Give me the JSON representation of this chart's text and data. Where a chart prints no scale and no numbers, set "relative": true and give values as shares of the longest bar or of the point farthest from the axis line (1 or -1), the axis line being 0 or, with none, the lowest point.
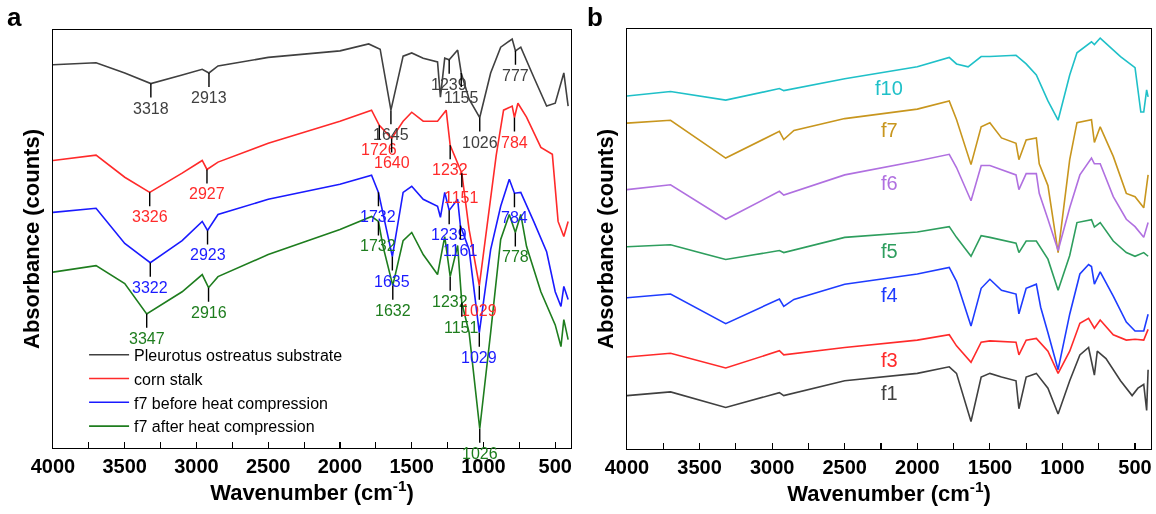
{
  "chart_data": [
    {
      "type": "line",
      "title": "a",
      "xlabel": "Wavenumber (cm$^{-1}$)",
      "ylabel": "Absorbance (counts)",
      "relative": true,
      "xlim": [
        4000,
        390
      ],
      "xticks": [
        4000,
        {
          "value": 3750,
          "label": null
        },
        3500,
        {
          "value": 3250,
          "label": null
        },
        3000,
        {
          "value": 2750,
          "label": null
        },
        2500,
        {
          "value": 2250,
          "label": null
        },
        2000,
        {
          "value": 1750,
          "label": null
        },
        1500,
        {
          "value": 1250,
          "label": null
        },
        1000,
        {
          "value": 750,
          "label": null
        },
        500
      ],
      "grid": false,
      "legend": "bottom left",
      "tick_labels": "x",
      "series": [
        {
          "name": "Pleurotus ostreatus substrate",
          "color": "#404040",
          "x": [
            4000,
            3700,
            3500,
            3318,
            3100,
            2960,
            2913,
            2850,
            2500,
            2000,
            1800,
            1720,
            1645,
            1560,
            1500,
            1420,
            1320,
            1300,
            1270,
            1239,
            1180,
            1155,
            1100,
            1026,
            950,
            880,
            800,
            777,
            740,
            650,
            560,
            500,
            440,
            410
          ],
          "values": [
            0.937,
            0.942,
            0.917,
            0.891,
            0.912,
            0.926,
            0.917,
            0.934,
            0.955,
            0.971,
            0.988,
            0.975,
            0.826,
            0.958,
            0.966,
            0.953,
            0.944,
            0.858,
            0.953,
            0.949,
            0.973,
            0.917,
            0.853,
            0.808,
            0.917,
            0.98,
            1.0,
            0.971,
            0.98,
            0.907,
            0.836,
            0.843,
            0.917,
            0.836
          ]
        },
        {
          "name": "corn stalk",
          "color": "#ff2a2a",
          "x": [
            4000,
            3700,
            3500,
            3326,
            3100,
            2960,
            2927,
            2850,
            2500,
            2000,
            1780,
            1726,
            1640,
            1560,
            1500,
            1420,
            1320,
            1260,
            1232,
            1151,
            1100,
            1029,
            911,
            860,
            800,
            784,
            760,
            700,
            600,
            520,
            480,
            440,
            410
          ],
          "values": [
            0.703,
            0.716,
            0.662,
            0.625,
            0.672,
            0.703,
            0.681,
            0.699,
            0.745,
            0.799,
            0.826,
            0.789,
            0.757,
            0.799,
            0.821,
            0.799,
            0.799,
            0.826,
            0.74,
            0.672,
            0.534,
            0.397,
            0.716,
            0.826,
            0.836,
            0.808,
            0.843,
            0.809,
            0.735,
            0.718,
            0.554,
            0.517,
            0.554
          ]
        },
        {
          "name": "f7 before heat compression",
          "color": "#1a1aff",
          "x": [
            4000,
            3700,
            3500,
            3322,
            3100,
            2960,
            2923,
            2850,
            2500,
            2000,
            1780,
            1732,
            1635,
            1560,
            1500,
            1420,
            1320,
            1300,
            1270,
            1239,
            1180,
            1161,
            1100,
            1029,
            950,
            880,
            820,
            784,
            740,
            650,
            560,
            500,
            460,
            440,
            410
          ],
          "values": [
            0.576,
            0.586,
            0.5,
            0.453,
            0.507,
            0.554,
            0.532,
            0.571,
            0.608,
            0.645,
            0.667,
            0.625,
            0.468,
            0.625,
            0.64,
            0.608,
            0.591,
            0.564,
            0.625,
            0.581,
            0.608,
            0.544,
            0.485,
            0.282,
            0.485,
            0.591,
            0.657,
            0.623,
            0.625,
            0.554,
            0.48,
            0.382,
            0.346,
            0.395,
            0.363
          ]
        },
        {
          "name": "f7 after heat compression",
          "color": "#1e7d1e",
          "x": [
            4000,
            3700,
            3500,
            3347,
            3100,
            2960,
            2916,
            2850,
            2500,
            2000,
            1780,
            1732,
            1700,
            1632,
            1560,
            1500,
            1420,
            1320,
            1270,
            1232,
            1180,
            1151,
            1100,
            1026,
            950,
            880,
            820,
            778,
            740,
            700,
            600,
            500,
            460,
            440,
            410
          ],
          "values": [
            0.43,
            0.446,
            0.402,
            0.328,
            0.382,
            0.424,
            0.392,
            0.419,
            0.473,
            0.534,
            0.566,
            0.554,
            0.493,
            0.397,
            0.507,
            0.527,
            0.473,
            0.424,
            0.517,
            0.419,
            0.495,
            0.355,
            0.282,
            0.047,
            0.282,
            0.51,
            0.571,
            0.527,
            0.571,
            0.493,
            0.382,
            0.301,
            0.248,
            0.314,
            0.265
          ]
        }
      ],
      "annotations": [
        {
          "text": "3318",
          "x": 3318,
          "y": 0.891
        },
        {
          "text": "2913",
          "x": 2913,
          "y": 0.917
        },
        {
          "text": "1645",
          "x": 1645,
          "y": 0.826
        },
        {
          "text": "1239",
          "x": 1239,
          "y": 0.949
        },
        {
          "text": "1155",
          "x": 1155,
          "y": 0.917
        },
        {
          "text": "1026",
          "x": 1026,
          "y": 0.808
        },
        {
          "text": "777",
          "x": 777,
          "y": 0.971
        },
        {
          "text": "3326",
          "x": 3326,
          "y": 0.625
        },
        {
          "text": "2927",
          "x": 2927,
          "y": 0.681
        },
        {
          "text": "1726",
          "x": 1726,
          "y": 0.789
        },
        {
          "text": "1640",
          "x": 1640,
          "y": 0.757
        },
        {
          "text": "1232",
          "x": 1232,
          "y": 0.74
        },
        {
          "text": "1151",
          "x": 1151,
          "y": 0.672
        },
        {
          "text": "1029",
          "x": 1029,
          "y": 0.397
        },
        {
          "text": "784",
          "x": 784,
          "y": 0.808
        },
        {
          "text": "3322",
          "x": 3322,
          "y": 0.453
        },
        {
          "text": "2923",
          "x": 2923,
          "y": 0.532
        },
        {
          "text": "1732",
          "x": 1732,
          "y": 0.625
        },
        {
          "text": "1635",
          "x": 1635,
          "y": 0.468
        },
        {
          "text": "1239",
          "x": 1239,
          "y": 0.581
        },
        {
          "text": "1161",
          "x": 1161,
          "y": 0.544
        },
        {
          "text": "1029",
          "x": 1029,
          "y": 0.282
        },
        {
          "text": "784",
          "x": 784,
          "y": 0.623
        },
        {
          "text": "3347",
          "x": 3347,
          "y": 0.328
        },
        {
          "text": "2916",
          "x": 2916,
          "y": 0.392
        },
        {
          "text": "1732",
          "x": 1732,
          "y": 0.554
        },
        {
          "text": "1632",
          "x": 1632,
          "y": 0.397
        },
        {
          "text": "1232",
          "x": 1232,
          "y": 0.419
        },
        {
          "text": "1151",
          "x": 1151,
          "y": 0.355
        },
        {
          "text": "1026",
          "x": 1026,
          "y": 0.047
        },
        {
          "text": "778",
          "x": 778,
          "y": 0.527
        }
      ]
    },
    {
      "type": "line",
      "title": "b",
      "xlabel": "Wavenumber (cm$^{-1}$)",
      "ylabel": "Absorbance (counts)",
      "relative": true,
      "xlim": [
        4000,
        390
      ],
      "xticks": [
        4000,
        {
          "value": 3750,
          "label": null
        },
        3500,
        {
          "value": 3250,
          "label": null
        },
        3000,
        {
          "value": 2750,
          "label": null
        },
        2500,
        {
          "value": 2250,
          "label": null
        },
        2000,
        {
          "value": 1750,
          "label": null
        },
        1500,
        {
          "value": 1250,
          "label": null
        },
        1000,
        {
          "value": 750,
          "label": null
        },
        500
      ],
      "grid": false,
      "tick_labels": "x",
      "series": [
        {
          "name": "f10",
          "color": "#1fc0c8",
          "x": [
            4000,
            3700,
            3320,
            2950,
            2920,
            2500,
            2000,
            1780,
            1730,
            1650,
            1560,
            1500,
            1320,
            1250,
            1180,
            1100,
            1030,
            950,
            900,
            800,
            780,
            740,
            600,
            500,
            460,
            440,
            420,
            410
          ],
          "values": [
            0.859,
            0.87,
            0.849,
            0.877,
            0.872,
            0.901,
            0.93,
            0.953,
            0.937,
            0.93,
            0.955,
            0.955,
            0.958,
            0.937,
            0.91,
            0.847,
            0.8,
            0.91,
            0.964,
            0.991,
            0.984,
            1.0,
            0.955,
            0.928,
            0.82,
            0.82,
            0.874,
            0.857
          ]
        },
        {
          "name": "f7",
          "color": "#c8961e",
          "x": [
            4000,
            3700,
            3320,
            2950,
            2920,
            2850,
            2500,
            2000,
            1780,
            1730,
            1630,
            1560,
            1500,
            1420,
            1320,
            1300,
            1250,
            1180,
            1160,
            1100,
            1030,
            950,
            900,
            800,
            780,
            740,
            650,
            560,
            500,
            440,
            410
          ],
          "values": [
            0.793,
            0.8,
            0.708,
            0.773,
            0.753,
            0.775,
            0.804,
            0.827,
            0.847,
            0.802,
            0.692,
            0.784,
            0.794,
            0.757,
            0.744,
            0.704,
            0.752,
            0.757,
            0.694,
            0.641,
            0.478,
            0.704,
            0.794,
            0.801,
            0.746,
            0.784,
            0.712,
            0.622,
            0.614,
            0.587,
            0.667
          ]
        },
        {
          "name": "f6",
          "color": "#b070e0",
          "x": [
            4000,
            3700,
            3320,
            2950,
            2920,
            2500,
            2000,
            1780,
            1730,
            1630,
            1560,
            1500,
            1320,
            1300,
            1250,
            1180,
            1160,
            1100,
            1030,
            950,
            880,
            800,
            780,
            740,
            650,
            560,
            500,
            440,
            410
          ],
          "values": [
            0.631,
            0.643,
            0.559,
            0.627,
            0.618,
            0.667,
            0.701,
            0.717,
            0.685,
            0.604,
            0.69,
            0.69,
            0.667,
            0.631,
            0.67,
            0.67,
            0.622,
            0.559,
            0.483,
            0.587,
            0.667,
            0.708,
            0.694,
            0.694,
            0.614,
            0.559,
            0.541,
            0.515,
            0.551
          ]
        },
        {
          "name": "f5",
          "color": "#2e9e5e",
          "x": [
            4000,
            3700,
            3320,
            2950,
            2920,
            2500,
            2000,
            1780,
            1730,
            1630,
            1560,
            1500,
            1320,
            1300,
            1250,
            1180,
            1100,
            1030,
            950,
            900,
            800,
            780,
            740,
            650,
            560,
            500,
            440,
            410
          ],
          "values": [
            0.492,
            0.497,
            0.461,
            0.483,
            0.478,
            0.515,
            0.528,
            0.541,
            0.515,
            0.469,
            0.519,
            0.515,
            0.501,
            0.478,
            0.506,
            0.506,
            0.462,
            0.386,
            0.471,
            0.551,
            0.558,
            0.54,
            0.551,
            0.506,
            0.478,
            0.469,
            0.478,
            0.469
          ]
        },
        {
          "name": "f4",
          "color": "#1e3cff",
          "x": [
            4000,
            3700,
            3320,
            2950,
            2920,
            2850,
            2500,
            2000,
            1780,
            1730,
            1630,
            1560,
            1500,
            1420,
            1320,
            1300,
            1250,
            1180,
            1150,
            1100,
            1030,
            950,
            880,
            820,
            800,
            780,
            740,
            650,
            560,
            500,
            440,
            410
          ],
          "values": [
            0.368,
            0.377,
            0.305,
            0.365,
            0.347,
            0.364,
            0.401,
            0.426,
            0.442,
            0.408,
            0.299,
            0.391,
            0.413,
            0.386,
            0.377,
            0.329,
            0.391,
            0.401,
            0.345,
            0.283,
            0.193,
            0.328,
            0.426,
            0.449,
            0.444,
            0.401,
            0.431,
            0.372,
            0.309,
            0.287,
            0.287,
            0.328
          ]
        },
        {
          "name": "f3",
          "color": "#ff2a2a",
          "x": [
            4000,
            3700,
            3320,
            2950,
            2920,
            2500,
            2000,
            1780,
            1730,
            1630,
            1560,
            1500,
            1320,
            1300,
            1250,
            1180,
            1100,
            1030,
            950,
            880,
            820,
            780,
            740,
            650,
            560,
            500,
            440,
            410
          ],
          "values": [
            0.224,
            0.233,
            0.197,
            0.239,
            0.229,
            0.247,
            0.265,
            0.278,
            0.251,
            0.211,
            0.26,
            0.263,
            0.26,
            0.229,
            0.265,
            0.269,
            0.238,
            0.184,
            0.238,
            0.306,
            0.318,
            0.294,
            0.314,
            0.278,
            0.265,
            0.267,
            0.265,
            0.291
          ]
        },
        {
          "name": "f1",
          "color": "#404040",
          "x": [
            4000,
            3700,
            3320,
            2950,
            2920,
            2500,
            2000,
            1780,
            1730,
            1630,
            1560,
            1500,
            1420,
            1320,
            1300,
            1250,
            1180,
            1100,
            1030,
            950,
            880,
            820,
            780,
            760,
            700,
            600,
            520,
            480,
            440,
            420,
            410
          ],
          "values": [
            0.13,
            0.139,
            0.101,
            0.137,
            0.13,
            0.166,
            0.184,
            0.2,
            0.184,
            0.067,
            0.175,
            0.184,
            0.175,
            0.166,
            0.098,
            0.175,
            0.184,
            0.148,
            0.085,
            0.166,
            0.229,
            0.247,
            0.18,
            0.238,
            0.22,
            0.166,
            0.13,
            0.148,
            0.157,
            0.094,
            0.193
          ]
        }
      ]
    }
  ]
}
